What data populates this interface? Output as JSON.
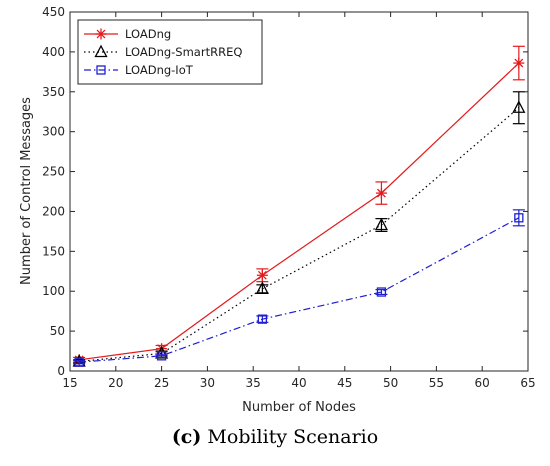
{
  "chart_data": {
    "type": "line",
    "xlabel": "Number of Nodes",
    "ylabel": "Number of Control Messages",
    "xlim": [
      15,
      65
    ],
    "ylim": [
      0,
      450
    ],
    "xticks": [
      15,
      20,
      25,
      30,
      35,
      40,
      45,
      50,
      55,
      60,
      65
    ],
    "yticks": [
      0,
      50,
      100,
      150,
      200,
      250,
      300,
      350,
      400,
      450
    ],
    "grid": false,
    "legend_position": "top-left",
    "series": [
      {
        "name": "LOADng",
        "color": "#e41a1c",
        "line_style": "solid",
        "marker": "asterisk",
        "x": [
          16,
          25,
          36,
          49,
          64
        ],
        "y": [
          14,
          28,
          120,
          223,
          386
        ],
        "error": [
          3,
          4,
          8,
          14,
          21
        ]
      },
      {
        "name": "LOADng-SmartRREQ",
        "color": "#000000",
        "line_style": "dotted",
        "marker": "triangle",
        "x": [
          16,
          25,
          36,
          49,
          64
        ],
        "y": [
          12,
          22,
          103,
          183,
          330
        ],
        "error": [
          2,
          3,
          5,
          8,
          20
        ]
      },
      {
        "name": "LOADng-IoT",
        "color": "#1f1fd2",
        "line_style": "dashdot",
        "marker": "square",
        "x": [
          16,
          25,
          36,
          49,
          64
        ],
        "y": [
          11,
          19,
          65,
          99,
          192
        ],
        "error": [
          2,
          2,
          4,
          3,
          10
        ]
      }
    ]
  },
  "caption": {
    "letter": "(c)",
    "text": "Mobility Scenario"
  }
}
